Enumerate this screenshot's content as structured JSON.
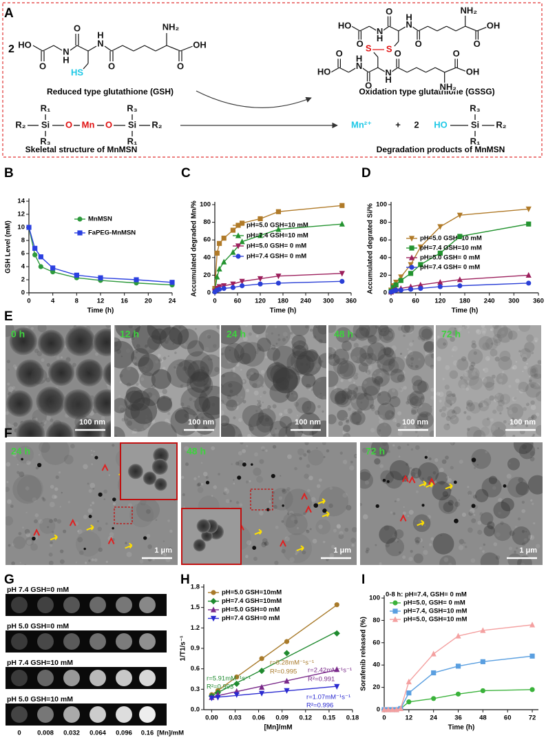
{
  "panel_a": {
    "label": "A",
    "gsh": {
      "coefficient": "2",
      "atoms": [
        "HO",
        "O",
        "N",
        "H",
        "O",
        "N",
        "H",
        "O",
        "NH₂",
        "OH",
        "O",
        "HS"
      ],
      "name": "Reduced type glutathione (GSH)"
    },
    "gssg": {
      "atoms_top": [
        "HO",
        "O",
        "N",
        "H",
        "O",
        "N",
        "H",
        "O",
        "NH₂",
        "OH",
        "O",
        "S"
      ],
      "atoms_bottom": [
        "HO",
        "O",
        "N",
        "H",
        "O",
        "N",
        "H",
        "O",
        "NH₂",
        "OH",
        "O",
        "S"
      ],
      "name": "Oxidation type glutathione (GSSG)"
    },
    "mnmsn": {
      "atoms": [
        "R₂",
        "Si",
        "O",
        "Mn",
        "O",
        "Si",
        "R₂",
        "R₁",
        "R₃",
        "R₃",
        "R₁"
      ],
      "name": "Skeletal structure of MnMSN"
    },
    "products": {
      "atoms": [
        "Mn²⁺",
        "+",
        "2",
        "HO",
        "Si",
        "R₂",
        "R₃",
        "R₁"
      ],
      "name": "Degradation products of MnMSN"
    }
  },
  "chart_data": [
    {
      "panel": "B",
      "type": "line",
      "x_label": "Time (h)",
      "y_label": "GSH Level (mM)",
      "x": [
        0,
        1,
        2,
        4,
        8,
        12,
        18,
        24
      ],
      "xlim": [
        0,
        24
      ],
      "xticks": [
        0,
        4,
        8,
        12,
        16,
        20,
        24
      ],
      "ylim": [
        0,
        14
      ],
      "yticks": [
        0,
        2,
        4,
        6,
        8,
        10,
        12,
        14
      ],
      "series": [
        {
          "name": "MnMSN",
          "color": "#2e9a3c",
          "marker": "circle",
          "values": [
            10,
            5.8,
            4.0,
            3.2,
            2.3,
            1.9,
            1.5,
            1.2
          ]
        },
        {
          "name": "FaPEG-MnMSN",
          "color": "#2a3fe0",
          "marker": "square",
          "values": [
            10,
            6.8,
            5.5,
            3.8,
            2.7,
            2.3,
            2.0,
            1.6
          ]
        }
      ]
    },
    {
      "panel": "C",
      "type": "line",
      "x_label": "Time (h)",
      "y_label": "Accumulated degraded Mn/%",
      "x": [
        0,
        6,
        12,
        24,
        48,
        72,
        120,
        168,
        336
      ],
      "xlim": [
        0,
        360
      ],
      "xticks": [
        0,
        60,
        120,
        180,
        240,
        300,
        360
      ],
      "ylim": [
        0,
        100
      ],
      "yticks": [
        0,
        20,
        40,
        60,
        80,
        100
      ],
      "series": [
        {
          "name": "pH=5.0 GSH=10 mM",
          "color": "#b07a28",
          "marker": "square",
          "values": [
            5,
            45,
            56,
            62,
            71,
            79,
            84,
            92,
            99
          ]
        },
        {
          "name": "pH=7.4 GSH=10 mM",
          "color": "#23932f",
          "marker": "triangle",
          "values": [
            3,
            18,
            27,
            35,
            46,
            58,
            65,
            72,
            78
          ]
        },
        {
          "name": "pH=5.0 GSH= 0 mM",
          "color": "#9c1f5c",
          "marker": "triangle-down",
          "values": [
            2,
            5,
            7,
            8,
            10,
            13,
            16,
            19,
            22
          ]
        },
        {
          "name": "pH=7.4 GSH= 0 mM",
          "color": "#2a3fd6",
          "marker": "circle",
          "values": [
            1,
            3,
            4,
            5,
            6,
            8,
            10,
            11,
            13
          ]
        }
      ]
    },
    {
      "panel": "D",
      "type": "line",
      "x_label": "Time (h)",
      "y_label": "Accumulated degrated Si/%",
      "x": [
        0,
        6,
        12,
        24,
        48,
        72,
        120,
        168,
        336
      ],
      "xlim": [
        0,
        360
      ],
      "xticks": [
        0,
        60,
        120,
        180,
        240,
        300,
        360
      ],
      "ylim": [
        0,
        100
      ],
      "yticks": [
        0,
        20,
        40,
        60,
        80,
        100
      ],
      "series": [
        {
          "name": "pH=5.0 GSH=10 mM",
          "color": "#b07a28",
          "marker": "triangle-down",
          "values": [
            3,
            8,
            12,
            18,
            32,
            52,
            75,
            88,
            95
          ]
        },
        {
          "name": "pH=7.4 GSH=10 mM",
          "color": "#23932f",
          "marker": "square",
          "values": [
            2,
            6,
            9,
            14,
            22,
            32,
            45,
            64,
            78
          ]
        },
        {
          "name": "pH=5.0 GSH= 0 mM",
          "color": "#9c1f5c",
          "marker": "triangle",
          "values": [
            1,
            3,
            4,
            5,
            7,
            9,
            12,
            15,
            20
          ]
        },
        {
          "name": "pH=7.4 GSH= 0 mM",
          "color": "#2a3fd6",
          "marker": "circle",
          "values": [
            1,
            2,
            3,
            3,
            4,
            5,
            7,
            8,
            11
          ]
        }
      ]
    },
    {
      "panel": "H",
      "type": "scatter",
      "trendline": "linear",
      "x_label": "[Mn]/mM",
      "y_label": "1/T1/s⁻¹",
      "x": [
        0,
        0.008,
        0.032,
        0.064,
        0.096,
        0.16
      ],
      "xlim": [
        -0.01,
        0.18
      ],
      "xticks": [
        {
          "value": 0,
          "label": "0.00"
        },
        0.03,
        0.06,
        0.09,
        0.12,
        0.15,
        0.18
      ],
      "ylim": [
        0,
        1.8
      ],
      "yticks": [
        {
          "value": 0,
          "label": "0.0"
        },
        0.3,
        0.6,
        0.9,
        1.2,
        1.5,
        1.8
      ],
      "series": [
        {
          "name": "pH=5.0 GSH=10mM",
          "color": "#a87a2a",
          "marker": "circle",
          "values": [
            0.22,
            0.28,
            0.48,
            0.75,
            1.0,
            1.54
          ]
        },
        {
          "name": "pH=7.4 GSH=10mM",
          "color": "#1f8a2f",
          "marker": "diamond",
          "values": [
            0.2,
            0.25,
            0.38,
            0.57,
            0.83,
            1.12
          ]
        },
        {
          "name": "pH=5.0 GSH=0 mM",
          "color": "#7a2a8a",
          "marker": "triangle",
          "values": [
            0.18,
            0.22,
            0.27,
            0.33,
            0.42,
            0.59
          ]
        },
        {
          "name": "pH=7.4 GSH=0 mM",
          "color": "#2a2ad0",
          "marker": "triangle-down",
          "values": [
            0.17,
            0.18,
            0.22,
            0.24,
            0.28,
            0.34
          ]
        }
      ],
      "annotations": [
        {
          "text": "r=8.28mM⁻¹s⁻¹",
          "color": "#a87a2a"
        },
        {
          "text": "R²=0.995",
          "color": "#a87a2a"
        },
        {
          "text": "r=5.91mM⁻¹s⁻¹",
          "color": "#1f8a2f"
        },
        {
          "text": "R²=0.993",
          "color": "#1f8a2f"
        },
        {
          "text": "r=2.42mM⁻¹s⁻¹",
          "color": "#7a2a8a"
        },
        {
          "text": "R²=0.991",
          "color": "#7a2a8a"
        },
        {
          "text": "r=1.07mM⁻¹s⁻¹",
          "color": "#2a2ad0"
        },
        {
          "text": "R²=0.996",
          "color": "#2a2ad0"
        }
      ]
    },
    {
      "panel": "I",
      "type": "line",
      "x_label": "Time (h)",
      "y_label": "Sorafenib released (%)",
      "legend_title": "0-8 h: pH=7.4, GSH= 0 mM",
      "x": [
        0,
        2,
        4,
        6,
        8,
        12,
        24,
        36,
        48,
        72
      ],
      "xlim": [
        0,
        75
      ],
      "xticks": [
        0,
        12,
        24,
        36,
        48,
        60,
        72
      ],
      "ylim": [
        0,
        100
      ],
      "yticks": [
        0,
        20,
        40,
        60,
        80,
        100
      ],
      "series": [
        {
          "name": "pH=5.0, GSH= 0 mM",
          "color": "#3ab23a",
          "marker": "circle",
          "values": [
            0,
            0,
            0,
            0,
            1,
            7,
            10,
            14,
            17,
            18
          ]
        },
        {
          "name": "pH=7.4, GSH=10 mM",
          "color": "#5a9fe0",
          "marker": "square",
          "values": [
            0,
            0,
            0,
            0,
            1,
            15,
            33,
            39,
            43,
            48
          ]
        },
        {
          "name": "pH=5.0, GSH=10 mM",
          "color": "#f4a0a0",
          "marker": "triangle",
          "values": [
            0,
            0,
            0,
            0,
            1,
            25,
            50,
            66,
            71,
            76
          ]
        }
      ]
    }
  ],
  "panel_e": {
    "label": "E",
    "images": [
      {
        "time": "0 h",
        "scale": "100 nm"
      },
      {
        "time": "12 h",
        "scale": "100 nm"
      },
      {
        "time": "24 h",
        "scale": "100 nm"
      },
      {
        "time": "48 h",
        "scale": "100 nm"
      },
      {
        "time": "72 h",
        "scale": "100 nm"
      }
    ]
  },
  "panel_f": {
    "label": "F",
    "images": [
      {
        "time": "24 h",
        "scale": "1 μm"
      },
      {
        "time": "48 h",
        "scale": "1 μm"
      },
      {
        "time": "72 h",
        "scale": "1 μm"
      }
    ]
  },
  "panel_g": {
    "label": "G",
    "rows": [
      {
        "label": "pH 7.4 GSH=0 mM",
        "colors": [
          "#3a3a3a",
          "#414141",
          "#555555",
          "#6a6a6a",
          "#777777",
          "#888888"
        ]
      },
      {
        "label": "pH 5.0 GSH=0 mM",
        "colors": [
          "#3a3a3a",
          "#484848",
          "#5a5a5a",
          "#707070",
          "#7c7c7c",
          "#909090"
        ]
      },
      {
        "label": "pH 7.4 GSH=10 mM",
        "colors": [
          "#3a3a3a",
          "#666666",
          "#999999",
          "#b8b8b8",
          "#c8c8c8",
          "#d8d8d8"
        ]
      },
      {
        "label": "pH 5.0 GSH=10 mM",
        "colors": [
          "#444444",
          "#777777",
          "#aaaaaa",
          "#cccccc",
          "#dddddd",
          "#eeeeee"
        ]
      }
    ],
    "concentrations": [
      0,
      0.008,
      0.032,
      0.064,
      0.096,
      0.16
    ],
    "unit": "[Mn]/mM"
  }
}
